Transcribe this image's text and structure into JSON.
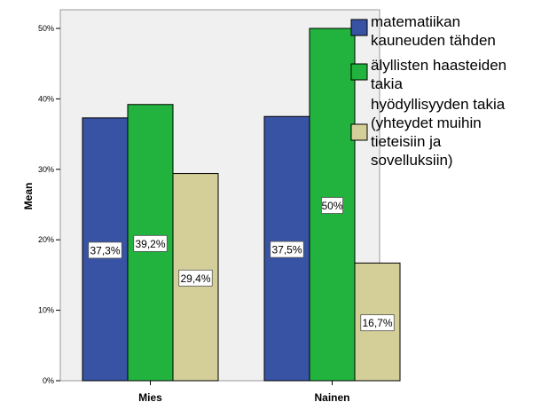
{
  "chart_data": {
    "type": "bar",
    "categories": [
      "Mies",
      "Nainen"
    ],
    "series": [
      {
        "name": "matematiikan kauneuden tähden",
        "legend_lines": [
          "matematiikan",
          "kauneuden tähden"
        ],
        "values": [
          37.3,
          37.5
        ],
        "labels": [
          "37,3%",
          "37,5%"
        ],
        "color": "#3953a4"
      },
      {
        "name": "älyllisten haasteiden takia",
        "legend_lines": [
          "älyllisten haasteiden",
          "takia"
        ],
        "values": [
          39.2,
          50
        ],
        "labels": [
          "39,2%",
          "50%"
        ],
        "color": "#21b33e"
      },
      {
        "name": "hyödyllisyyden takia (yhteydet muihin tieteisiin ja sovelluksiin)",
        "legend_lines": [
          "hyödyllisyyden takia",
          "(yhteydet muihin",
          "tieteisiin ja",
          "sovelluksiin)"
        ],
        "values": [
          29.4,
          16.7
        ],
        "labels": [
          "29,4%",
          "16,7%"
        ],
        "color": "#d4cf99"
      }
    ],
    "ylabel": "Mean",
    "xlabel": "",
    "ylim": [
      0,
      50
    ],
    "yticks": [
      0,
      10,
      20,
      30,
      40,
      50
    ],
    "ytick_labels": [
      "0%",
      "10%",
      "20%",
      "30%",
      "40%",
      "50%"
    ],
    "grid": false,
    "legend_position": "right"
  }
}
